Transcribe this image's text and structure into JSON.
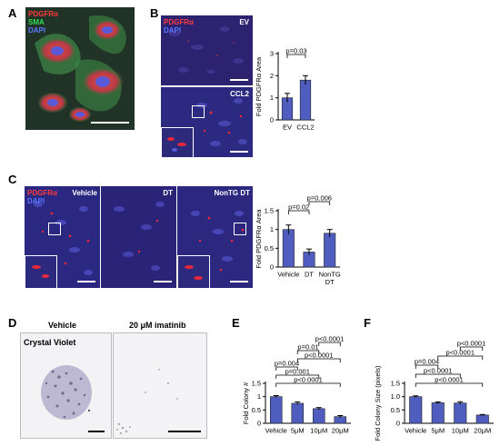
{
  "panel_letters": {
    "a": "A",
    "b": "B",
    "c": "C",
    "d": "D",
    "e": "E",
    "f": "F"
  },
  "panel_a": {
    "stains": [
      "PDGFRα",
      "SMA",
      "DAPI"
    ]
  },
  "panel_b": {
    "stains": [
      "PDGFRα",
      "DAPI"
    ],
    "conditions": [
      "EV",
      "CCL2"
    ]
  },
  "panel_c": {
    "stains": [
      "PDGFRα",
      "DAPI"
    ],
    "conditions": [
      "Vehicle",
      "DT",
      "NonTG DT"
    ]
  },
  "panel_d": {
    "conditions": [
      "Vehicle",
      "20 μM imatinib"
    ],
    "stain": "Crystal Violet"
  },
  "colors": {
    "bar_fill": "#4f5dbf",
    "dapi_blue": "#2a2f9a",
    "pdgfr_red": "#e8283a",
    "sma_green": "#38b24a"
  },
  "chart_data": [
    {
      "id": "B",
      "type": "bar",
      "categories": [
        "EV",
        "CCL2"
      ],
      "values": [
        1.0,
        1.8
      ],
      "errors": [
        0.2,
        0.2
      ],
      "ylabel": "Fold PDGFRα Area",
      "ylim": [
        0,
        3
      ],
      "yticks": [
        "0",
        "1",
        "2",
        "3"
      ],
      "comparisons": [
        {
          "from": 0,
          "to": 1,
          "label": "p=0.03"
        }
      ]
    },
    {
      "id": "C",
      "type": "bar",
      "categories": [
        "Vehicle",
        "DT",
        "NonTG DT"
      ],
      "category_lines": [
        [
          "Vehicle"
        ],
        [
          "DT"
        ],
        [
          "NonTG",
          "DT"
        ]
      ],
      "values": [
        1.0,
        0.4,
        0.9
      ],
      "errors": [
        0.12,
        0.08,
        0.1
      ],
      "ylabel": "Fold PDGFRα Area",
      "ylim": [
        0,
        1.5
      ],
      "yticks": [
        "0",
        "0.5",
        "1",
        "1.5"
      ],
      "comparisons": [
        {
          "from": 0,
          "to": 1,
          "label": "p=0.02"
        },
        {
          "from": 1,
          "to": 2,
          "label": "p=0.006"
        }
      ]
    },
    {
      "id": "E",
      "type": "bar",
      "categories": [
        "Vehicle",
        "5μM",
        "10μM",
        "20μM"
      ],
      "values": [
        1.0,
        0.75,
        0.55,
        0.25
      ],
      "errors": [
        0.04,
        0.05,
        0.04,
        0.04
      ],
      "ylabel": "Fold Colony #",
      "ylim": [
        0,
        1.5
      ],
      "yticks": [
        "0",
        "0.5",
        "1",
        "1.5"
      ],
      "comparisons": [
        {
          "from": 0,
          "to": 3,
          "label": "p<0.0001"
        },
        {
          "from": 0,
          "to": 2,
          "label": "p=0.001"
        },
        {
          "from": 0,
          "to": 1,
          "label": "p=0.004"
        },
        {
          "from": 1,
          "to": 3,
          "label": "p<0.0001"
        },
        {
          "from": 1,
          "to": 2,
          "label": "p=0.01"
        },
        {
          "from": 2,
          "to": 3,
          "label": "p<0.0001"
        }
      ]
    },
    {
      "id": "F",
      "type": "bar",
      "categories": [
        "Vehicle",
        "5μM",
        "10μM",
        "20μM"
      ],
      "values": [
        1.0,
        0.77,
        0.76,
        0.31
      ],
      "errors": [
        0.03,
        0.03,
        0.05,
        0.02
      ],
      "ylabel": "Fold Colony Size (pixels)",
      "ylim": [
        0,
        1.5
      ],
      "yticks": [
        "0",
        "0.5",
        "1.0",
        "1.5"
      ],
      "comparisons": [
        {
          "from": 0,
          "to": 3,
          "label": "p<0.0001"
        },
        {
          "from": 0,
          "to": 2,
          "label": "p<0.0001"
        },
        {
          "from": 0,
          "to": 1,
          "label": "p=0.004"
        },
        {
          "from": 1,
          "to": 3,
          "label": "p<0.0001"
        },
        {
          "from": 2,
          "to": 3,
          "label": "p<0.0001"
        }
      ]
    }
  ]
}
